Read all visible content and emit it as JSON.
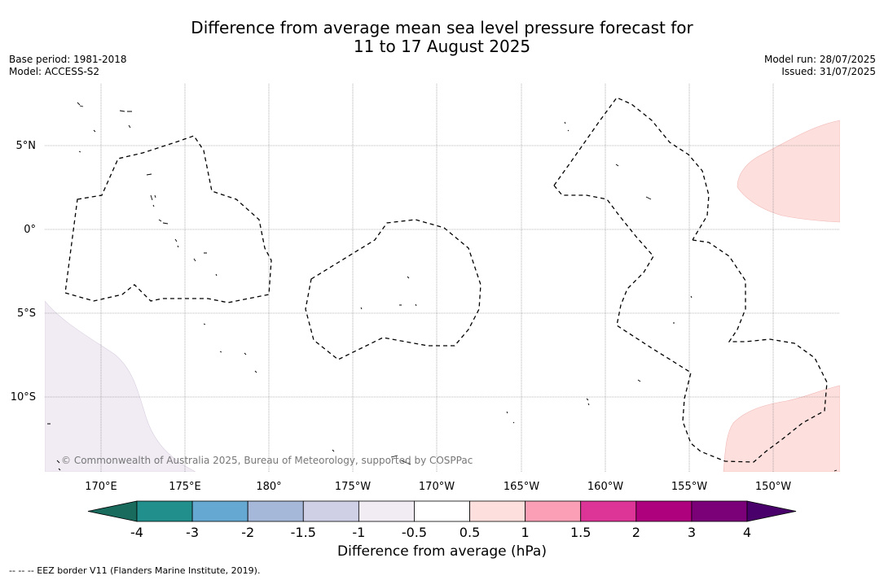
{
  "title": {
    "line1": "Difference from average mean sea level pressure forecast for",
    "line2": "11 to 17 August 2025"
  },
  "meta_left": {
    "base_period": "Base period: 1981-2018",
    "model": "Model: ACCESS-S2"
  },
  "meta_right": {
    "model_run": "Model run: 28/07/2025",
    "issued": "Issued: 31/07/2025"
  },
  "map": {
    "lat_ticks": [
      "5°N",
      "0°",
      "5°S",
      "10°S"
    ],
    "lon_ticks": [
      "170°E",
      "175°E",
      "180°",
      "175°W",
      "170°W",
      "165°W",
      "160°W",
      "155°W",
      "150°W"
    ],
    "copyright": "© Commonwealth of Australia 2025, Bureau of Meteorology, supported by COSPPac",
    "grid": true,
    "shaded_regions": [
      {
        "category": "-1 to -0.5",
        "location": "south-west corner"
      },
      {
        "category": "0.5 to 1",
        "location": "north-east edge"
      },
      {
        "category": "0.5 to 1",
        "location": "south-east corner"
      }
    ]
  },
  "colorbar": {
    "title": "Difference from average (hPa)",
    "labels": [
      "-4",
      "-3",
      "-2",
      "-1.5",
      "-1",
      "-0.5",
      "0.5",
      "1",
      "1.5",
      "2",
      "3",
      "4"
    ],
    "colors": [
      "#196b5e",
      "#21908c",
      "#65a8d2",
      "#a6b8da",
      "#cfd0e6",
      "#f1ecf4",
      "#ffffff",
      "#fde0dd",
      "#fa9fb5",
      "#dd3497",
      "#ae017e",
      "#7a0177",
      "#49006a"
    ]
  },
  "legend_note": "--  --  -- EEZ border V11 (Flanders Marine Institute, 2019)."
}
